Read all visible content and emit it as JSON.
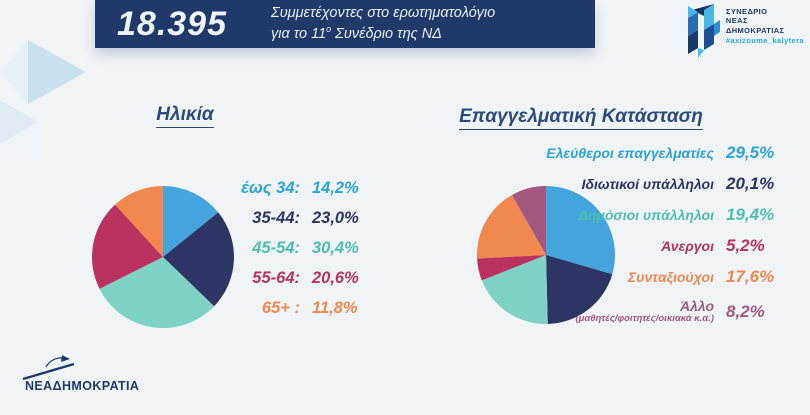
{
  "background_color": "#f1f4f7",
  "accent_navy": "#20396a",
  "header": {
    "count": "18.395",
    "subtitle_line1": "Συμμετέχοντες στο ερωτηματολόγιο",
    "subtitle_line2_pre": "για το 11",
    "subtitle_line2_sup": "ο",
    "subtitle_line2_post": " Συνέδριο της ΝΔ"
  },
  "congress_logo": {
    "line1": "ΣΥΝΕΔΡΙΟ",
    "line2": "ΝΕΑΣ",
    "line3": "ΔΗΜΟΚΡΑΤΙΑΣ",
    "hashtag": "#axizoume_kalytera"
  },
  "footer": {
    "brand": "ΝΕΑΔΗΜΟΚΡΑΤΙΑ"
  },
  "chart_data": [
    {
      "type": "pie",
      "title": "Ηλικία",
      "labels": [
        "έως 34",
        "35-44",
        "45-54",
        "55-64",
        "65+"
      ],
      "legend_labels": [
        "έως 34:",
        "35-44:",
        "45-54:",
        "55-64:",
        "65+ :"
      ],
      "values": [
        14.2,
        23.0,
        30.4,
        20.6,
        11.8
      ],
      "display_values": [
        "14,2%",
        "23,0%",
        "30,4%",
        "20,6%",
        "11,8%"
      ],
      "colors": [
        "#45a4dd",
        "#2e3464",
        "#7ed3c4",
        "#bb3160",
        "#f0884f"
      ],
      "text_colors": [
        "#2ba3dc",
        "#2e3464",
        "#4cbfae",
        "#bb3160",
        "#f0884f"
      ],
      "start_angle_deg": 0,
      "direction": "clockwise",
      "legend_position": "right",
      "total": 100
    },
    {
      "type": "pie",
      "title": "Επαγγελματική Κατάσταση",
      "labels": [
        "Ελεύθεροι επαγγελματίες",
        "Ιδιωτικοί υπάλληλοι",
        "Δημόσιοι υπάλληλοι",
        "Άνεργοι",
        "Συνταξιούχοι",
        "Άλλο"
      ],
      "sublabels": [
        "",
        "",
        "",
        "",
        "",
        "(μαθητές/φοιτητές/οικιακά κ.α.)"
      ],
      "values": [
        29.5,
        20.1,
        19.4,
        5.2,
        17.6,
        8.2
      ],
      "display_values": [
        "29,5%",
        "20,1%",
        "19,4%",
        "5,2%",
        "17,6%",
        "8,2%"
      ],
      "colors": [
        "#45a4dd",
        "#2e3464",
        "#7ed3c4",
        "#bb3160",
        "#f0884f",
        "#a2587f"
      ],
      "text_colors": [
        "#2ba3dc",
        "#2e3464",
        "#4cbfae",
        "#bb3160",
        "#f0884f",
        "#a2587f"
      ],
      "start_angle_deg": 0,
      "direction": "clockwise",
      "legend_position": "right",
      "total": 100
    }
  ]
}
